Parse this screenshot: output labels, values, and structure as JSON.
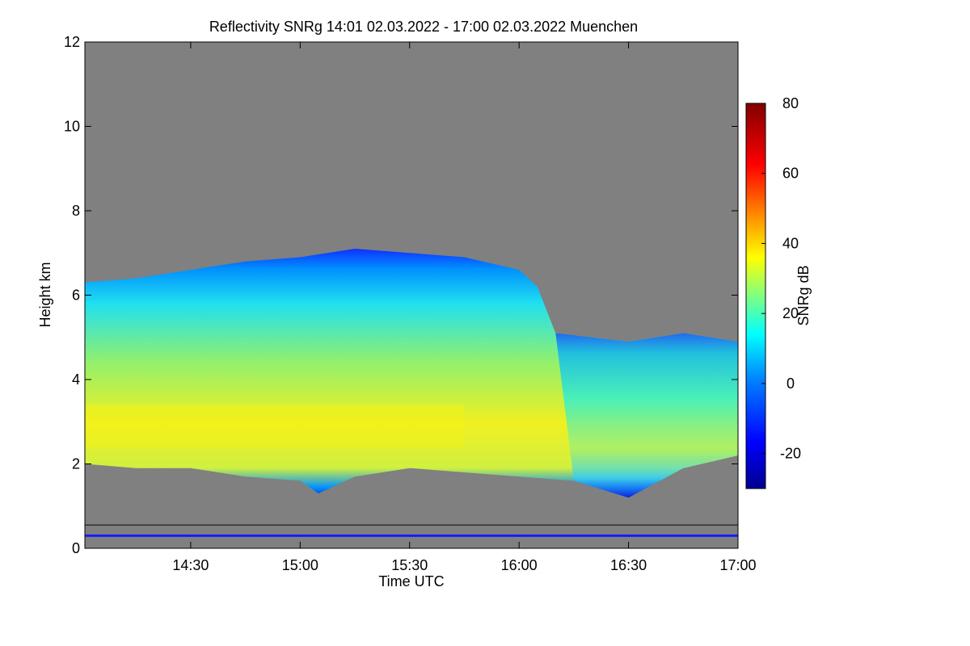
{
  "chart_data": {
    "type": "heatmap",
    "title": "Reflectivity SNRg   14:01 02.03.2022 - 17:00 02.03.2022 Muenchen",
    "xlabel": "Time UTC",
    "ylabel": "Height km",
    "x_range": [
      "14:01",
      "17:00"
    ],
    "ylim": [
      0,
      12
    ],
    "x_ticks": [
      "14:30",
      "15:00",
      "15:30",
      "16:00",
      "16:30",
      "17:00"
    ],
    "y_ticks": [
      0,
      2,
      4,
      6,
      8,
      10,
      12
    ],
    "colorbar": {
      "label": "SNRg dB",
      "range": [
        -30,
        80
      ],
      "ticks": [
        -20,
        0,
        20,
        40,
        60,
        80
      ]
    },
    "background_color": "#808080",
    "cloud_top_km": [
      {
        "t": "14:01",
        "h": 6.3
      },
      {
        "t": "14:15",
        "h": 6.4
      },
      {
        "t": "14:30",
        "h": 6.6
      },
      {
        "t": "14:45",
        "h": 6.8
      },
      {
        "t": "15:00",
        "h": 6.9
      },
      {
        "t": "15:15",
        "h": 7.1
      },
      {
        "t": "15:30",
        "h": 7.0
      },
      {
        "t": "15:45",
        "h": 6.9
      },
      {
        "t": "16:00",
        "h": 6.6
      },
      {
        "t": "16:05",
        "h": 6.2
      },
      {
        "t": "16:10",
        "h": 5.1
      },
      {
        "t": "16:30",
        "h": 4.9
      },
      {
        "t": "16:45",
        "h": 5.1
      },
      {
        "t": "17:00",
        "h": 4.9
      }
    ],
    "cloud_base_km": [
      {
        "t": "14:01",
        "h": 2.0
      },
      {
        "t": "14:15",
        "h": 1.9
      },
      {
        "t": "14:30",
        "h": 1.9
      },
      {
        "t": "14:45",
        "h": 1.7
      },
      {
        "t": "15:00",
        "h": 1.6
      },
      {
        "t": "15:05",
        "h": 1.3
      },
      {
        "t": "15:15",
        "h": 1.7
      },
      {
        "t": "15:30",
        "h": 1.9
      },
      {
        "t": "15:45",
        "h": 1.8
      },
      {
        "t": "16:00",
        "h": 1.7
      },
      {
        "t": "16:15",
        "h": 1.6
      },
      {
        "t": "16:30",
        "h": 1.2
      },
      {
        "t": "16:45",
        "h": 1.9
      },
      {
        "t": "17:00",
        "h": 2.2
      }
    ],
    "max_reflectivity_layer_km": [
      2.4,
      3.4
    ],
    "max_reflectivity_db": 37,
    "ground_clutter_lines_km": [
      0.55,
      0.3
    ]
  }
}
